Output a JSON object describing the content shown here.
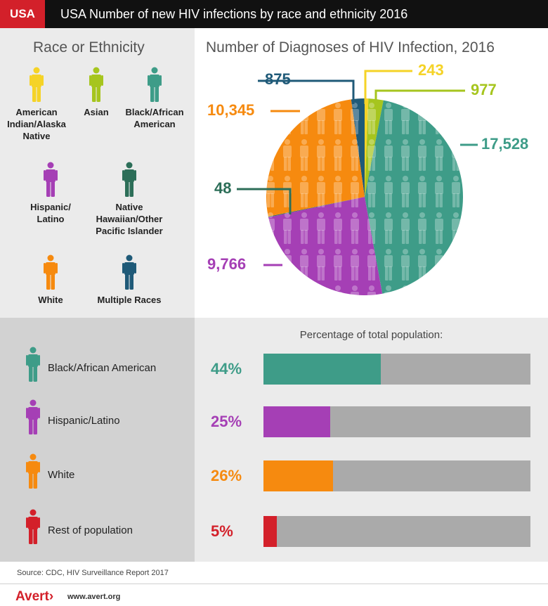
{
  "header": {
    "country": "USA",
    "title": "USA Number of new HIV infections by race and ethnicity 2016"
  },
  "legend": {
    "title": "Race or Ethnicity",
    "items": [
      {
        "label": "American Indian/Alaska Native",
        "lines": [
          "American",
          "Indian/Alaska",
          "Native"
        ],
        "color": "#f5d327"
      },
      {
        "label": "Asian",
        "lines": [
          "Asian"
        ],
        "color": "#a6c51e"
      },
      {
        "label": "Black/African American",
        "lines": [
          "Black/African",
          "American"
        ],
        "color": "#3e9c88"
      },
      {
        "label": "Hispanic/Latino",
        "lines": [
          "Hispanic/",
          "Latino"
        ],
        "color": "#a53fb5"
      },
      {
        "label": "Native Hawaiian/Other Pacific Islander",
        "lines": [
          "Native",
          "Hawaiian/Other",
          "Pacific Islander"
        ],
        "color": "#2c6e58"
      },
      {
        "label": "White",
        "lines": [
          "White"
        ],
        "color": "#f68a0f"
      },
      {
        "label": "Multiple Races",
        "lines": [
          "Multiple Races"
        ],
        "color": "#1f5a78"
      }
    ]
  },
  "chart_data": [
    {
      "type": "pie",
      "title": "Number of Diagnoses of HIV Infection, 2016",
      "slices": [
        {
          "name": "American Indian/Alaska Native",
          "value": 243,
          "label": "243",
          "color": "#f5d327"
        },
        {
          "name": "Asian",
          "value": 977,
          "label": "977",
          "color": "#a6c51e"
        },
        {
          "name": "Black/African American",
          "value": 17528,
          "label": "17,528",
          "color": "#3e9c88"
        },
        {
          "name": "Hispanic/Latino",
          "value": 9766,
          "label": "9,766",
          "color": "#a53fb5"
        },
        {
          "name": "Native Hawaiian/Other Pacific Islander",
          "value": 48,
          "label": "48",
          "color": "#2c6e58"
        },
        {
          "name": "White",
          "value": 10345,
          "label": "10,345",
          "color": "#f68a0f"
        },
        {
          "name": "Multiple Races",
          "value": 875,
          "label": "875",
          "color": "#1f5a78"
        }
      ]
    },
    {
      "type": "bar",
      "title": "Percentage of total population:",
      "categories": [
        "Black/African American",
        "Hispanic/Latino",
        "White",
        "Rest of population"
      ],
      "values": [
        44,
        25,
        26,
        5
      ],
      "value_labels": [
        "44%",
        "25%",
        "26%",
        "5%"
      ],
      "colors": [
        "#3e9c88",
        "#a53fb5",
        "#f68a0f",
        "#d3202a"
      ],
      "ylim": [
        0,
        100
      ]
    }
  ],
  "source": "Source: CDC, HIV Surveillance Report 2017",
  "footer": {
    "brand": "Avert",
    "url": "www.avert.org"
  }
}
